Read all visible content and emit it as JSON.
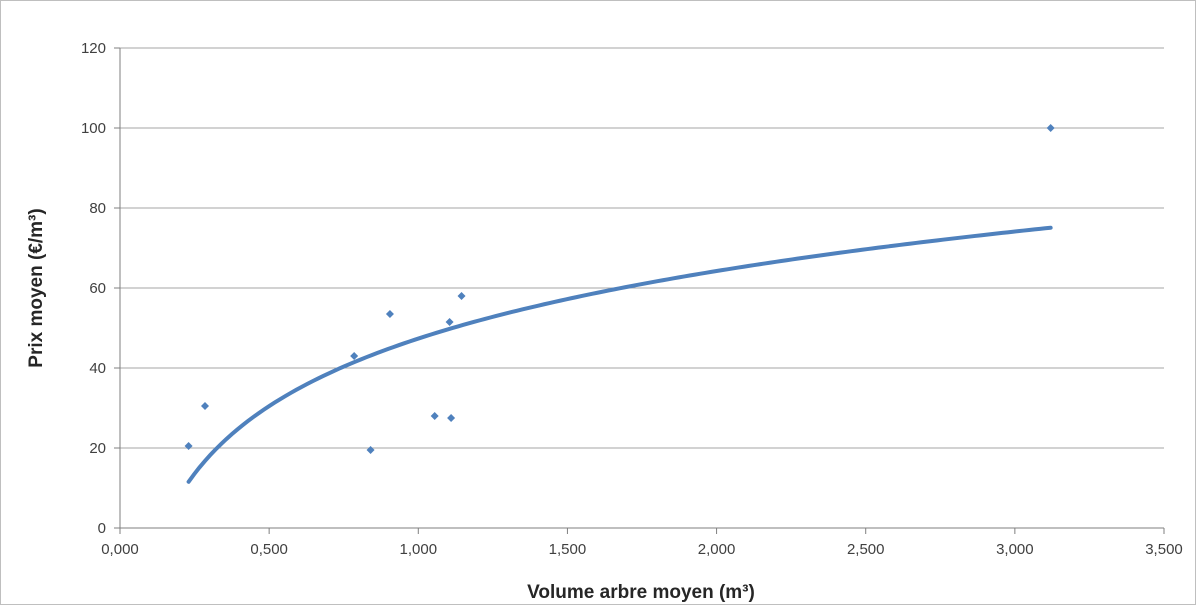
{
  "chart_data": {
    "type": "scatter",
    "xlabel": "Volume arbre moyen (m³)",
    "ylabel": "Prix moyen (€/m³)",
    "xlim": [
      0,
      3.5
    ],
    "ylim": [
      0,
      120
    ],
    "x_ticks": [
      "0,000",
      "0,500",
      "1,000",
      "1,500",
      "2,000",
      "2,500",
      "3,000",
      "3,500"
    ],
    "y_ticks": [
      "0",
      "20",
      "40",
      "60",
      "80",
      "100",
      "120"
    ],
    "grid": "horizontal",
    "legend": "none",
    "colors": {
      "series": "#4f81bd",
      "grid": "#a6a6a6",
      "axis": "#7f7f7f"
    },
    "series": [
      {
        "points": [
          {
            "x": 0.23,
            "y": 20.5
          },
          {
            "x": 0.285,
            "y": 30.5
          },
          {
            "x": 0.785,
            "y": 43.0
          },
          {
            "x": 0.84,
            "y": 19.5
          },
          {
            "x": 0.905,
            "y": 53.5
          },
          {
            "x": 1.055,
            "y": 28.0
          },
          {
            "x": 1.105,
            "y": 51.5
          },
          {
            "x": 1.11,
            "y": 27.5
          },
          {
            "x": 1.145,
            "y": 58.0
          },
          {
            "x": 3.12,
            "y": 100.0
          }
        ]
      }
    ],
    "trendline": {
      "type": "logarithmic",
      "x_range": [
        0.23,
        3.12
      ],
      "samples": [
        {
          "x": 0.23,
          "y": 12.0
        },
        {
          "x": 0.5,
          "y": 30.0
        },
        {
          "x": 1.0,
          "y": 47.0
        },
        {
          "x": 2.0,
          "y": 64.5
        },
        {
          "x": 3.12,
          "y": 75.2
        }
      ]
    }
  }
}
